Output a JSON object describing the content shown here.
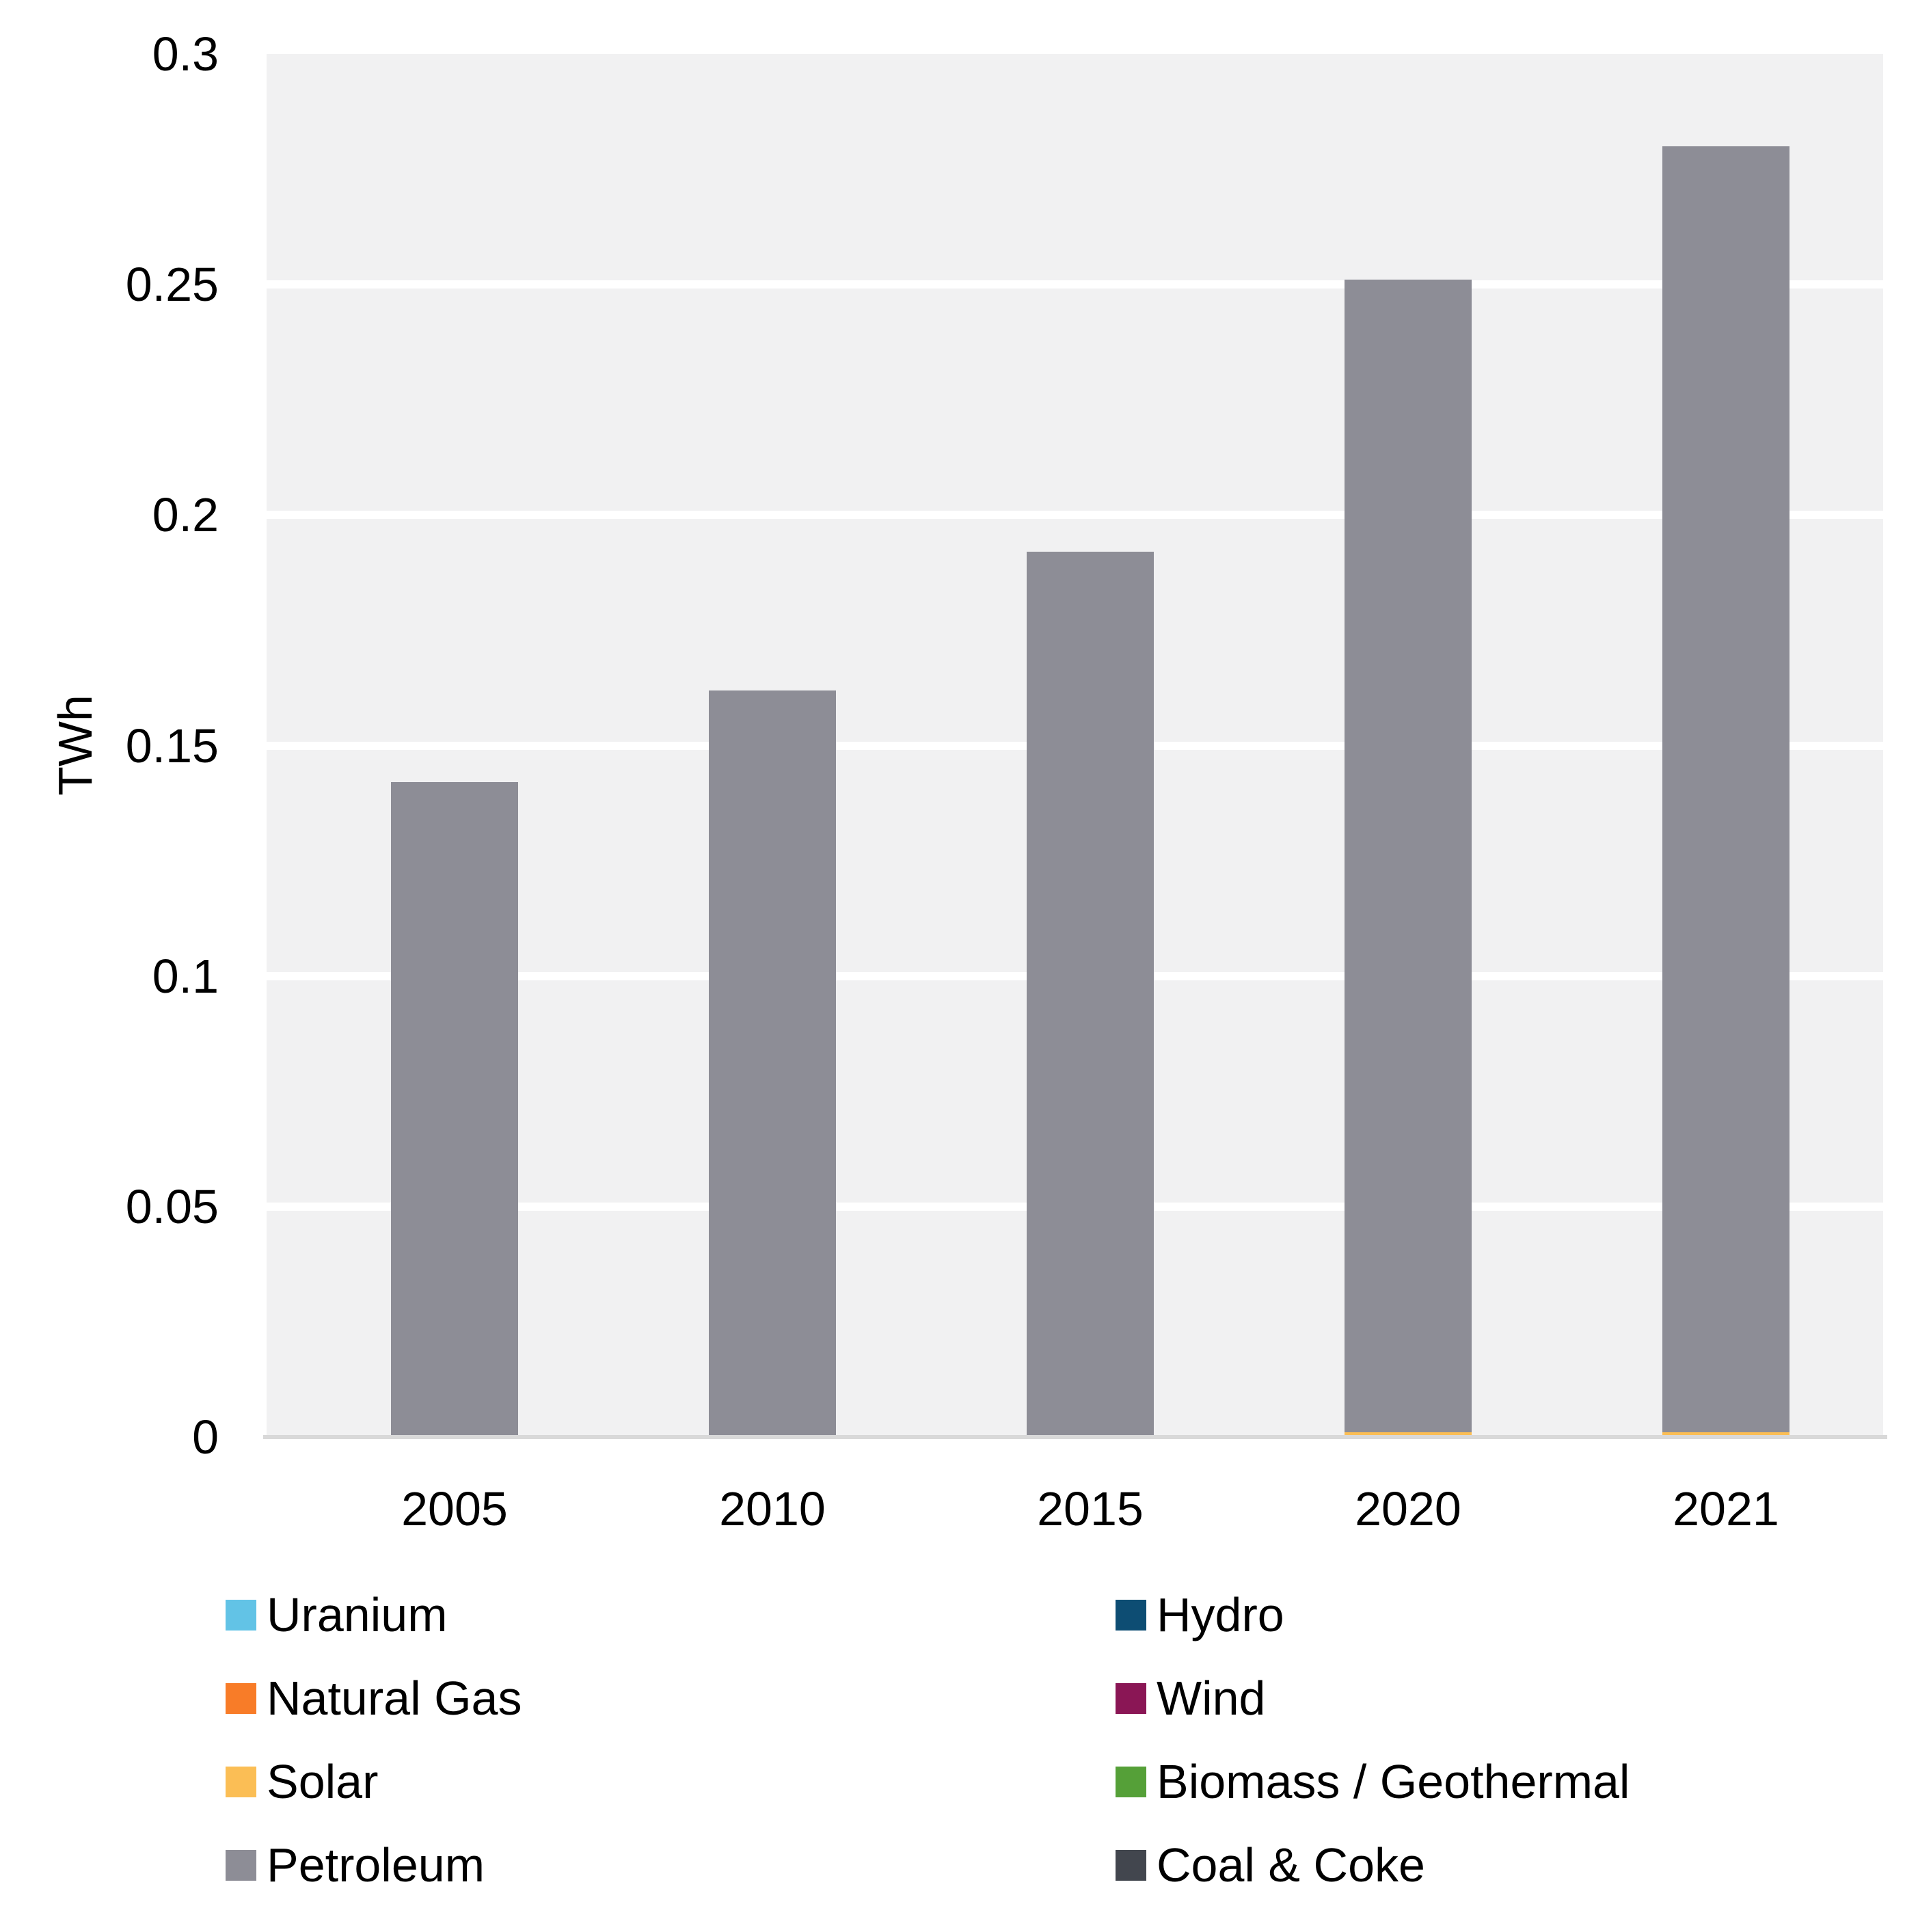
{
  "chart_data": {
    "type": "bar",
    "stacked": true,
    "title": "",
    "xlabel": "",
    "ylabel": "TWh",
    "ylim": [
      0,
      0.3
    ],
    "grid": true,
    "legend_position": "bottom-two-columns",
    "y_tick_labels": [
      "0",
      "0.05",
      "0.1",
      "0.15",
      "0.2",
      "0.25",
      "0.3"
    ],
    "categories": [
      "2005",
      "2010",
      "2015",
      "2020",
      "2021"
    ],
    "series": [
      {
        "name": "Uranium",
        "color": "#62c3e6",
        "values": [
          0,
          0,
          0,
          0,
          0
        ]
      },
      {
        "name": "Natural Gas",
        "color": "#f87c28",
        "values": [
          0,
          0,
          0,
          0,
          0
        ]
      },
      {
        "name": "Solar",
        "color": "#fbbe55",
        "values": [
          0,
          0,
          0,
          0.001,
          0.001
        ]
      },
      {
        "name": "Petroleum",
        "color": "#8d8d96",
        "values": [
          0.142,
          0.162,
          0.192,
          0.25,
          0.279
        ]
      },
      {
        "name": "Hydro",
        "color": "#0d4d73",
        "values": [
          0,
          0,
          0,
          0,
          0
        ]
      },
      {
        "name": "Wind",
        "color": "#8a1655",
        "values": [
          0,
          0,
          0,
          0,
          0
        ]
      },
      {
        "name": "Biomass / Geothermal",
        "color": "#55a038",
        "values": [
          0,
          0,
          0,
          0,
          0
        ]
      },
      {
        "name": "Coal & Coke",
        "color": "#42464e",
        "values": [
          0,
          0,
          0,
          0,
          0
        ]
      }
    ],
    "bar_totals": [
      0.142,
      0.162,
      0.192,
      0.251,
      0.28
    ],
    "legend": {
      "left_column": [
        "Uranium",
        "Natural Gas",
        "Solar",
        "Petroleum"
      ],
      "right_column": [
        "Hydro",
        "Wind",
        "Biomass / Geothermal",
        "Coal & Coke"
      ]
    },
    "colors": {
      "plot_background": "#f1f1f2",
      "gridline": "#ffffff",
      "axis_line": "#d9d9d9",
      "text": "#000000"
    }
  }
}
